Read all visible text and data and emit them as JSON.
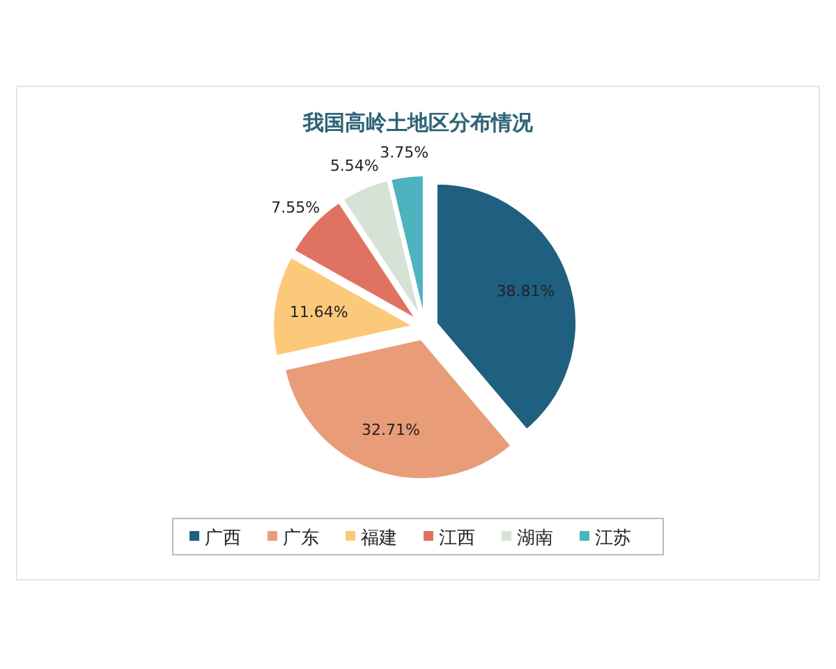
{
  "chart_data": {
    "type": "pie",
    "title": "我国高岭土地区分布情况",
    "categories": [
      "广西",
      "广东",
      "福建",
      "江西",
      "湖南",
      "江苏"
    ],
    "values": [
      38.81,
      32.71,
      11.64,
      7.55,
      5.54,
      3.75
    ],
    "colors": [
      "#1f5f80",
      "#e89c78",
      "#fcc97a",
      "#e07262",
      "#d6e2d6",
      "#4cb3bf"
    ],
    "value_labels": [
      "38.81%",
      "32.71%",
      "11.64%",
      "7.55%",
      "5.54%",
      "3.75%"
    ],
    "legend": "bottom"
  }
}
